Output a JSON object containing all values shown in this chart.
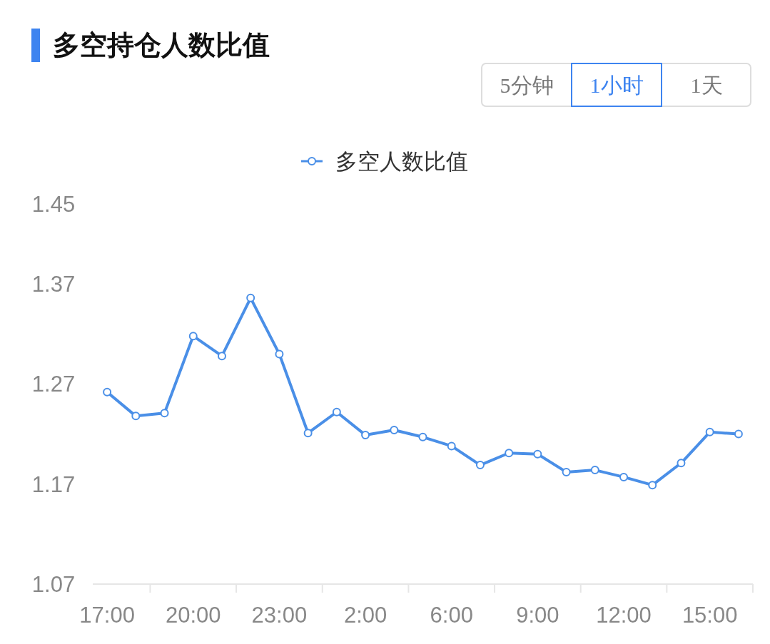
{
  "chart_data": {
    "type": "line",
    "title": "多空持仓人数比值",
    "annotations": [
      "5分钟",
      "1小时",
      "1天"
    ],
    "categories": [
      "17:00",
      null,
      null,
      "20:00",
      null,
      null,
      "23:00",
      null,
      null,
      "2:00",
      null,
      null,
      "6:00",
      null,
      null,
      "9:00",
      null,
      null,
      "12:00",
      null,
      null,
      "15:00",
      null
    ],
    "series": [
      {
        "name": "多空人数比值",
        "color": "#4a8fe7",
        "values": [
          1.262,
          1.238,
          1.241,
          1.318,
          1.298,
          1.356,
          1.3,
          1.221,
          1.242,
          1.219,
          1.224,
          1.217,
          1.208,
          1.189,
          1.201,
          1.2,
          1.182,
          1.184,
          1.177,
          1.169,
          1.191,
          1.222,
          1.22
        ]
      }
    ],
    "ylim": [
      1.07,
      1.45
    ],
    "yticks": [
      1.07,
      1.17,
      1.27,
      1.37,
      1.45
    ],
    "legend": "top",
    "marker": "circle",
    "line_style": "solid",
    "grid": false
  }
}
